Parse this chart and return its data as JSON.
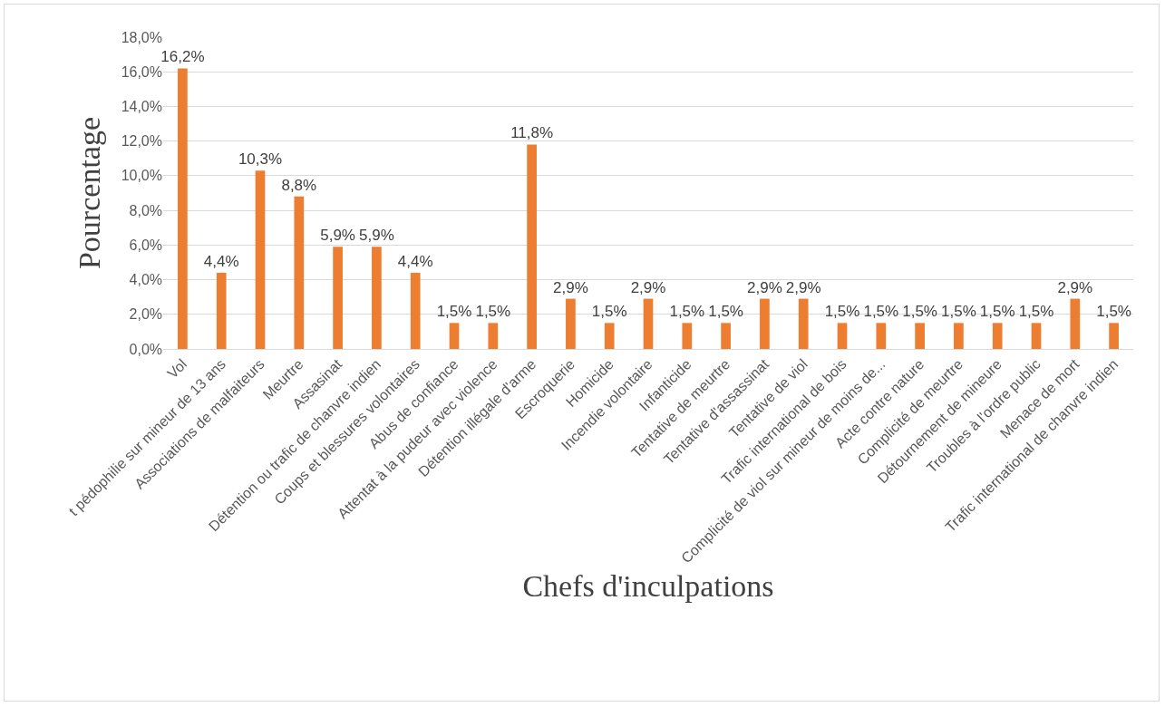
{
  "chart_data": {
    "type": "bar",
    "xlabel": "Chefs d'inculpations",
    "ylabel": "Pourcentage",
    "categories": [
      "Vol",
      "t pédophilie sur mineur de 13 ans",
      "Associations de malfaiteurs",
      "Meurtre",
      "Assasinat",
      "Détention ou trafic de chanvre indien",
      "Coups et blessures volontaires",
      "Abus de confiance",
      "Attentat à la pudeur avec violence",
      "Détention illégale d'arme",
      "Escroquerie",
      "Homicide",
      "Incendie volontaire",
      "Infanticide",
      "Tentative de meurtre",
      "Tentative d'assassinat",
      "Tentative de viol",
      "Trafic international de bois",
      "Complicité de viol sur mineur de moins de...",
      "Acte contre nature",
      "Complicité de meurtre",
      "Détournement de mineure",
      "Troubles à l'ordre public",
      "Menace de mort",
      "Trafic international de chanvre indien"
    ],
    "values": [
      16.2,
      4.4,
      10.3,
      8.8,
      5.9,
      5.9,
      4.4,
      1.5,
      1.5,
      11.8,
      2.9,
      1.5,
      2.9,
      1.5,
      1.5,
      2.9,
      2.9,
      1.5,
      1.5,
      1.5,
      1.5,
      1.5,
      1.5,
      2.9,
      1.5
    ],
    "value_labels": [
      "16,2%",
      "4,4%",
      "10,3%",
      "8,8%",
      "5,9%",
      "5,9%",
      "4,4%",
      "1,5%",
      "1,5%",
      "11,8%",
      "2,9%",
      "1,5%",
      "2,9%",
      "1,5%",
      "1,5%",
      "2,9%",
      "2,9%",
      "1,5%",
      "1,5%",
      "1,5%",
      "1,5%",
      "1,5%",
      "1,5%",
      "2,9%",
      "1,5%"
    ],
    "color": "#ed7d31",
    "ylim": [
      0,
      18
    ],
    "yticks": [
      {
        "value": 0,
        "label": "0,0%"
      },
      {
        "value": 2,
        "label": "2,0%"
      },
      {
        "value": 4,
        "label": "4,0%"
      },
      {
        "value": 6,
        "label": "6,0%"
      },
      {
        "value": 8,
        "label": "8,0%"
      },
      {
        "value": 10,
        "label": "10,0%"
      },
      {
        "value": 12,
        "label": "12,0%"
      },
      {
        "value": 14,
        "label": "14,0%"
      },
      {
        "value": 16,
        "label": "16,0%"
      },
      {
        "value": 18,
        "label": "18,0%"
      }
    ],
    "grid": "y"
  }
}
